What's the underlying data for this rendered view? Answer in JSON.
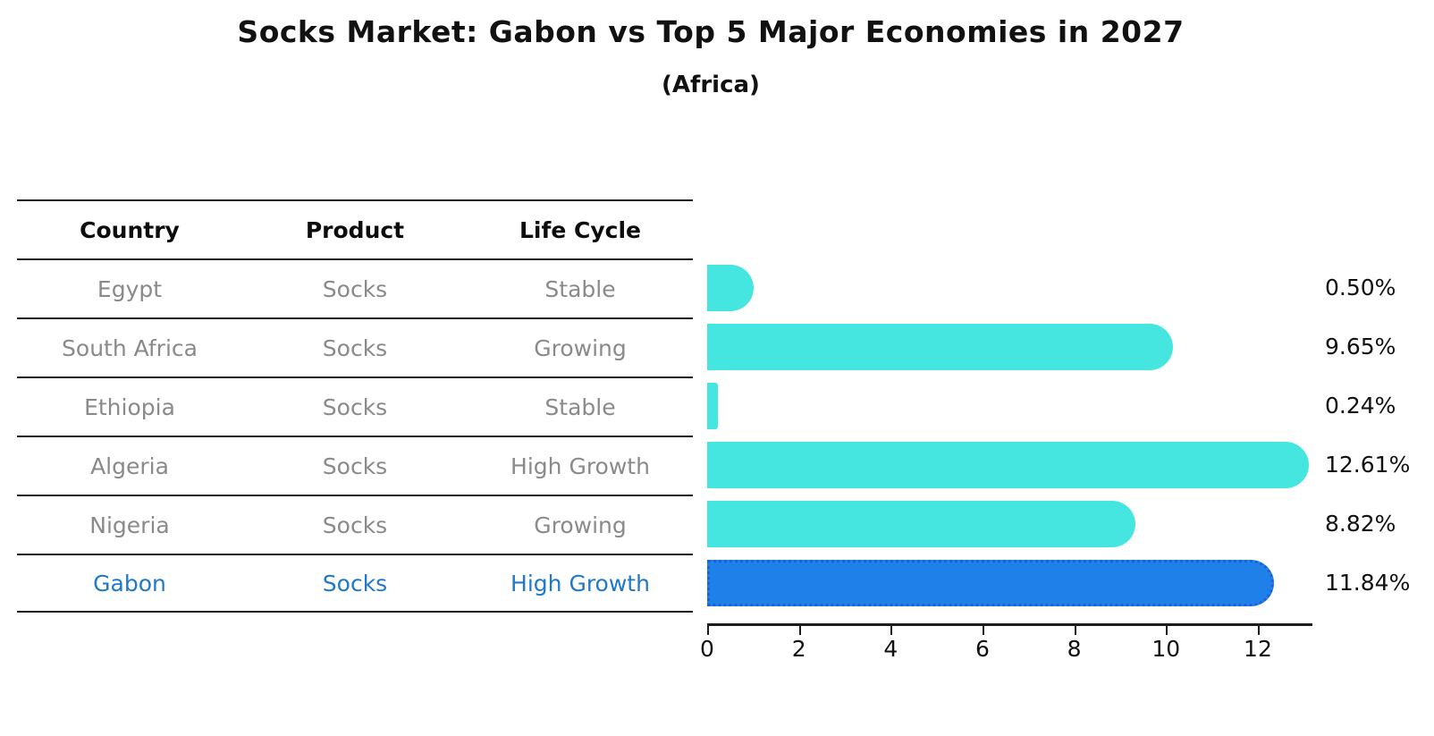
{
  "title": "Socks Market: Gabon vs Top 5 Major Economies in 2027",
  "subtitle": "(Africa)",
  "table": {
    "headers": [
      "Country",
      "Product",
      "Life Cycle"
    ],
    "rows": [
      {
        "country": "Egypt",
        "product": "Socks",
        "life_cycle": "Stable",
        "highlight": false
      },
      {
        "country": "South Africa",
        "product": "Socks",
        "life_cycle": "Growing",
        "highlight": false
      },
      {
        "country": "Ethiopia",
        "product": "Socks",
        "life_cycle": "Stable",
        "highlight": false
      },
      {
        "country": "Algeria",
        "product": "Socks",
        "life_cycle": "High Growth",
        "highlight": false
      },
      {
        "country": "Nigeria",
        "product": "Socks",
        "life_cycle": "Growing",
        "highlight": false
      },
      {
        "country": "Gabon",
        "product": "Socks",
        "life_cycle": "High Growth",
        "highlight": true
      }
    ]
  },
  "chart_data": {
    "type": "bar",
    "orientation": "horizontal",
    "title": "Socks Market: Gabon vs Top 5 Major Economies in 2027",
    "subtitle": "(Africa)",
    "categories": [
      "Egypt",
      "South Africa",
      "Ethiopia",
      "Algeria",
      "Nigeria",
      "Gabon"
    ],
    "values": [
      0.5,
      9.65,
      0.24,
      12.61,
      8.82,
      11.84
    ],
    "value_labels": [
      "0.50%",
      "9.65%",
      "0.24%",
      "12.61%",
      "8.82%",
      "11.84%"
    ],
    "highlight_index": 5,
    "xlabel": "",
    "ylabel": "",
    "xlim": [
      0,
      13.2
    ],
    "xticks": [
      0,
      2,
      4,
      6,
      8,
      10,
      12
    ],
    "grid": false,
    "legend": false
  },
  "colors": {
    "bar_color": "#45e6df",
    "highlight_bar": "#2080ea",
    "highlight_border": "#1b62d6",
    "highlight_text": "#1f78c8",
    "muted_text": "#8a8a8a",
    "line": "#1c1c1c"
  }
}
